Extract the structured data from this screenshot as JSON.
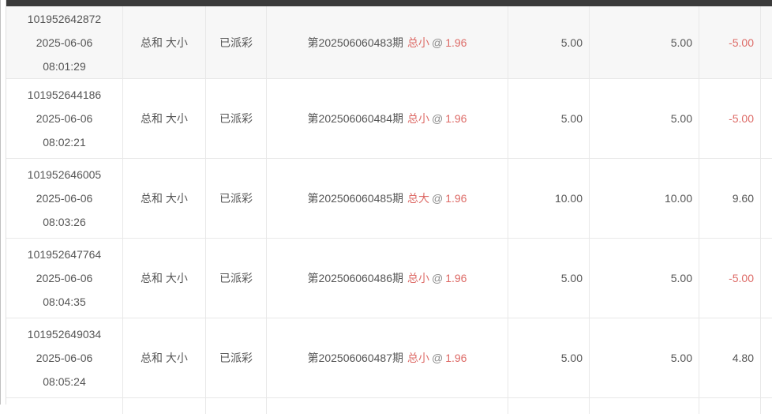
{
  "colors": {
    "header_bar": "#3a3a3a",
    "row_border": "#e8e8e8",
    "text": "#555555",
    "negative_red": "#dd6a66",
    "first_row_highlight": "#f7f7f7"
  },
  "table": {
    "rows": [
      {
        "order_id": "101952642872",
        "date": "2025-06-06",
        "time": "08:01:29",
        "play": "总和 大小",
        "status": "已派彩",
        "period": "第202506060483期",
        "pick": "总小",
        "at": "@",
        "odds": "1.96",
        "amount": "5.00",
        "valid_amount": "5.00",
        "result": "-5.00"
      },
      {
        "order_id": "101952644186",
        "date": "2025-06-06",
        "time": "08:02:21",
        "play": "总和 大小",
        "status": "已派彩",
        "period": "第202506060484期",
        "pick": "总小",
        "at": "@",
        "odds": "1.96",
        "amount": "5.00",
        "valid_amount": "5.00",
        "result": "-5.00"
      },
      {
        "order_id": "101952646005",
        "date": "2025-06-06",
        "time": "08:03:26",
        "play": "总和 大小",
        "status": "已派彩",
        "period": "第202506060485期",
        "pick": "总大",
        "at": "@",
        "odds": "1.96",
        "amount": "10.00",
        "valid_amount": "10.00",
        "result": "9.60"
      },
      {
        "order_id": "101952647764",
        "date": "2025-06-06",
        "time": "08:04:35",
        "play": "总和 大小",
        "status": "已派彩",
        "period": "第202506060486期",
        "pick": "总小",
        "at": "@",
        "odds": "1.96",
        "amount": "5.00",
        "valid_amount": "5.00",
        "result": "-5.00"
      },
      {
        "order_id": "101952649034",
        "date": "2025-06-06",
        "time": "08:05:24",
        "play": "总和 大小",
        "status": "已派彩",
        "period": "第202506060487期",
        "pick": "总小",
        "at": "@",
        "odds": "1.96",
        "amount": "5.00",
        "valid_amount": "5.00",
        "result": "4.80"
      }
    ]
  }
}
